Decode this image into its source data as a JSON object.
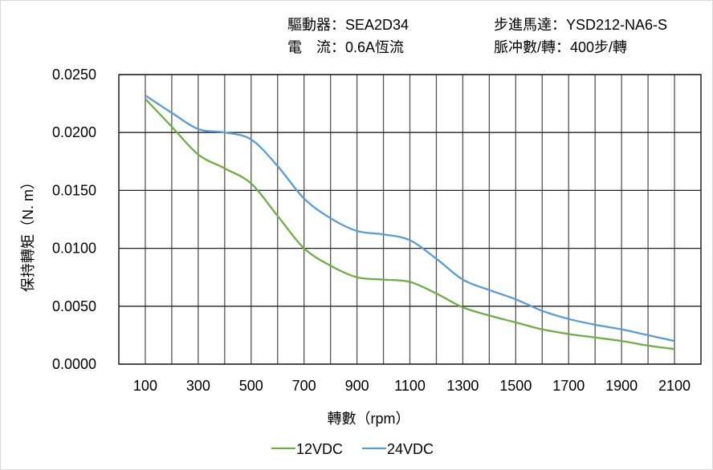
{
  "header": {
    "driver": "驅動器：SEA2D34",
    "motor": "步進馬達：YSD212-NA6-S",
    "current": "電　流：0.6A恆流",
    "pulses": "脈冲數/轉：400步/轉"
  },
  "chart_data": {
    "type": "line",
    "title": "",
    "xlabel": "轉數（rpm）",
    "ylabel": "保持轉矩（N. m）",
    "xlim": [
      0,
      2200
    ],
    "ylim": [
      0,
      0.025
    ],
    "grid": true,
    "legend_position": "bottom",
    "x_ticks": [
      "100",
      "300",
      "500",
      "700",
      "900",
      "1100",
      "1300",
      "1500",
      "1700",
      "1900",
      "2100"
    ],
    "y_ticks": [
      "0.0000",
      "0.0050",
      "0.0100",
      "0.0150",
      "0.0200",
      "0.0250"
    ],
    "x": [
      100,
      200,
      300,
      400,
      500,
      600,
      700,
      800,
      900,
      1000,
      1100,
      1200,
      1300,
      1400,
      1500,
      1600,
      1700,
      1800,
      1900,
      2000,
      2100
    ],
    "series": [
      {
        "name": "12VDC",
        "color": "#70ad47",
        "values": [
          0.0229,
          0.0205,
          0.0181,
          0.0169,
          0.0156,
          0.0128,
          0.01,
          0.0085,
          0.0075,
          0.0073,
          0.0071,
          0.0061,
          0.0049,
          0.0042,
          0.0036,
          0.003,
          0.0026,
          0.0023,
          0.002,
          0.0016,
          0.0013
        ]
      },
      {
        "name": "24VDC",
        "color": "#5b9bd5",
        "values": [
          0.0232,
          0.0217,
          0.0203,
          0.02,
          0.0194,
          0.0171,
          0.0143,
          0.0126,
          0.0115,
          0.0112,
          0.0107,
          0.0091,
          0.0073,
          0.0064,
          0.0056,
          0.0046,
          0.0039,
          0.0034,
          0.003,
          0.0025,
          0.002
        ]
      }
    ]
  }
}
